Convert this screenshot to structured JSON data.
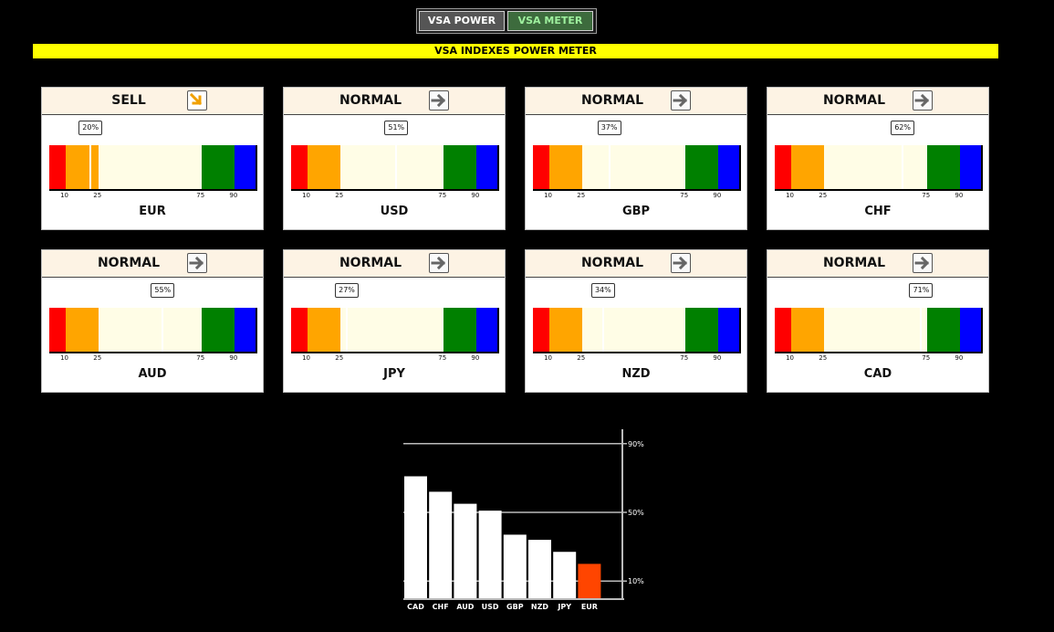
{
  "tabs": [
    {
      "label": "VSA POWER",
      "active": false
    },
    {
      "label": "VSA METER",
      "active": true
    }
  ],
  "banner": "VSA INDEXES POWER METER",
  "gauge_colors": {
    "red": "#ff0000",
    "orange": "#ffa500",
    "cream": "#fffde6",
    "green": "#008000",
    "blue": "#0000ff"
  },
  "thresholds": [
    "10",
    "25",
    "75",
    "90"
  ],
  "currencies": [
    {
      "code": "EUR",
      "signal": "SELL",
      "pct": "20%",
      "value": 20,
      "arrow": "down-right-arrow-icon"
    },
    {
      "code": "USD",
      "signal": "NORMAL",
      "pct": "51%",
      "value": 51,
      "arrow": "right-arrow-icon"
    },
    {
      "code": "GBP",
      "signal": "NORMAL",
      "pct": "37%",
      "value": 37,
      "arrow": "right-arrow-icon"
    },
    {
      "code": "CHF",
      "signal": "NORMAL",
      "pct": "62%",
      "value": 62,
      "arrow": "right-arrow-icon"
    },
    {
      "code": "AUD",
      "signal": "NORMAL",
      "pct": "55%",
      "value": 55,
      "arrow": "right-arrow-icon"
    },
    {
      "code": "JPY",
      "signal": "NORMAL",
      "pct": "27%",
      "value": 27,
      "arrow": "right-arrow-icon"
    },
    {
      "code": "NZD",
      "signal": "NORMAL",
      "pct": "34%",
      "value": 34,
      "arrow": "right-arrow-icon"
    },
    {
      "code": "CAD",
      "signal": "NORMAL",
      "pct": "71%",
      "value": 71,
      "arrow": "right-arrow-icon"
    }
  ],
  "chart_data": {
    "type": "bar",
    "categories": [
      "CAD",
      "CHF",
      "AUD",
      "USD",
      "GBP",
      "NZD",
      "JPY",
      "EUR"
    ],
    "values": [
      71,
      62,
      55,
      51,
      37,
      34,
      27,
      20
    ],
    "highlight_color": "#ff4500",
    "bar_color": "#ffffff",
    "y_ticks": [
      {
        "value": 90,
        "label": "90%"
      },
      {
        "value": 50,
        "label": "50%"
      },
      {
        "value": 10,
        "label": "10%"
      }
    ],
    "ylim": [
      0,
      100
    ],
    "grid": true
  }
}
